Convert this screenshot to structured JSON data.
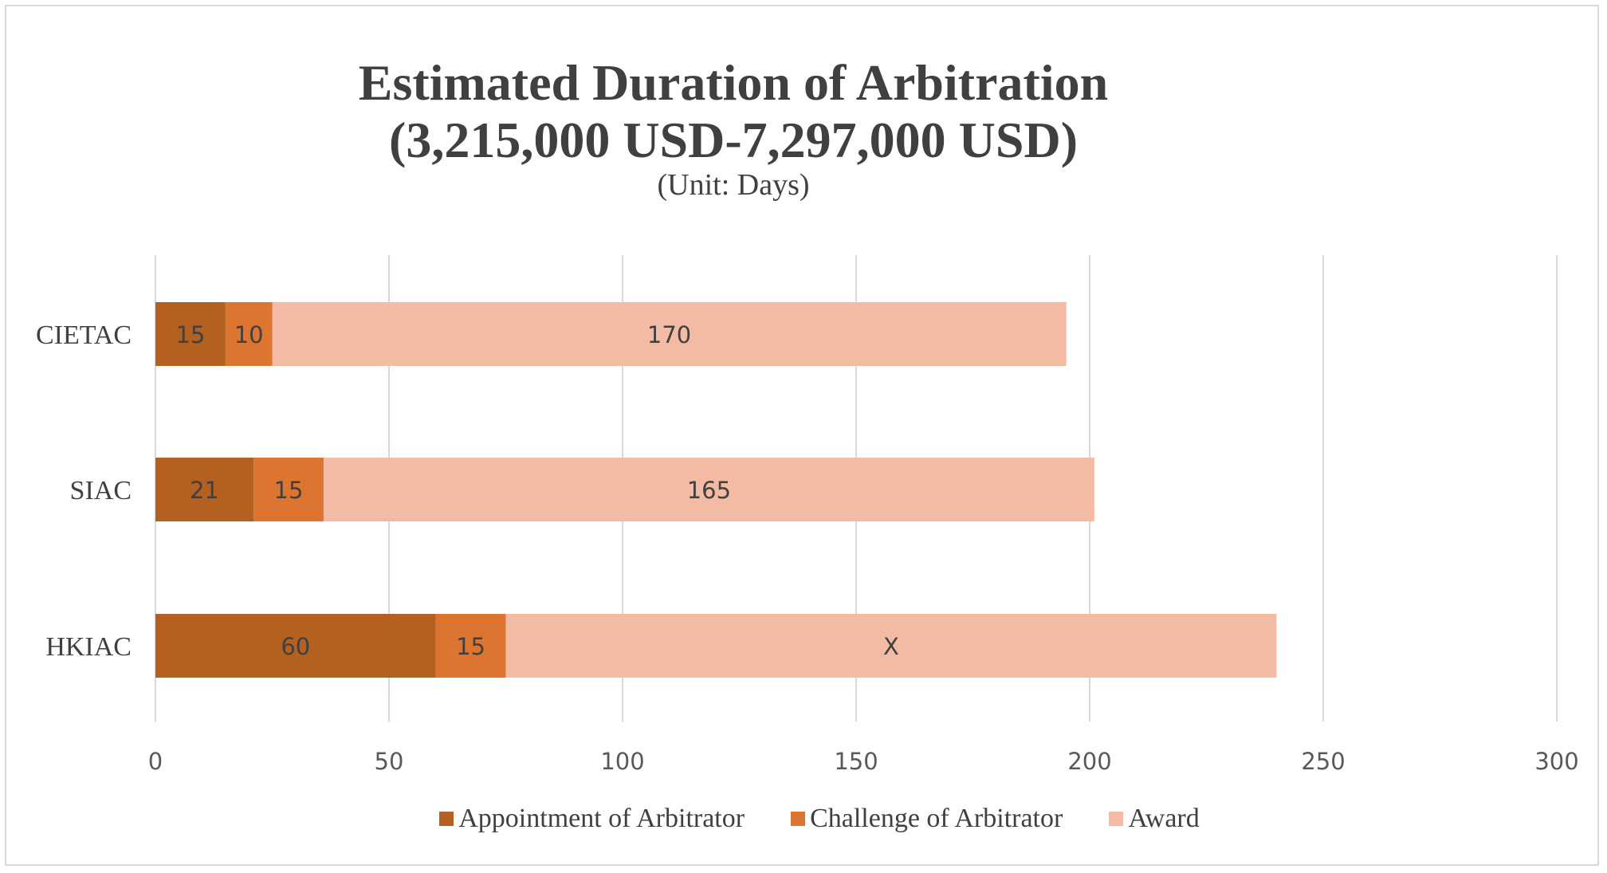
{
  "chart_data": {
    "type": "bar",
    "orientation": "horizontal",
    "stacked": true,
    "title_lines": [
      "Estimated Duration of Arbitration",
      "(3,215,000 USD-7,297,000 USD)"
    ],
    "subtitle": "(Unit: Days)",
    "categories": [
      "CIETAC",
      "SIAC",
      "HKIAC"
    ],
    "series": [
      {
        "name": "Appointment of Arbitrator",
        "color": "#b46021",
        "values": [
          15,
          21,
          60
        ],
        "labels": [
          "15",
          "21",
          "60"
        ]
      },
      {
        "name": "Challenge of Arbitrator",
        "color": "#dd7531",
        "values": [
          10,
          15,
          15
        ],
        "labels": [
          "10",
          "15",
          "15"
        ]
      },
      {
        "name": "Award",
        "color": "#f3bba3",
        "values": [
          170,
          165,
          165
        ],
        "labels": [
          "170",
          "165",
          "X"
        ]
      }
    ],
    "xlim": [
      0,
      300
    ],
    "xticks": [
      "0",
      "50",
      "100",
      "150",
      "200",
      "250",
      "300"
    ],
    "grid": true,
    "legend_position": "bottom"
  }
}
